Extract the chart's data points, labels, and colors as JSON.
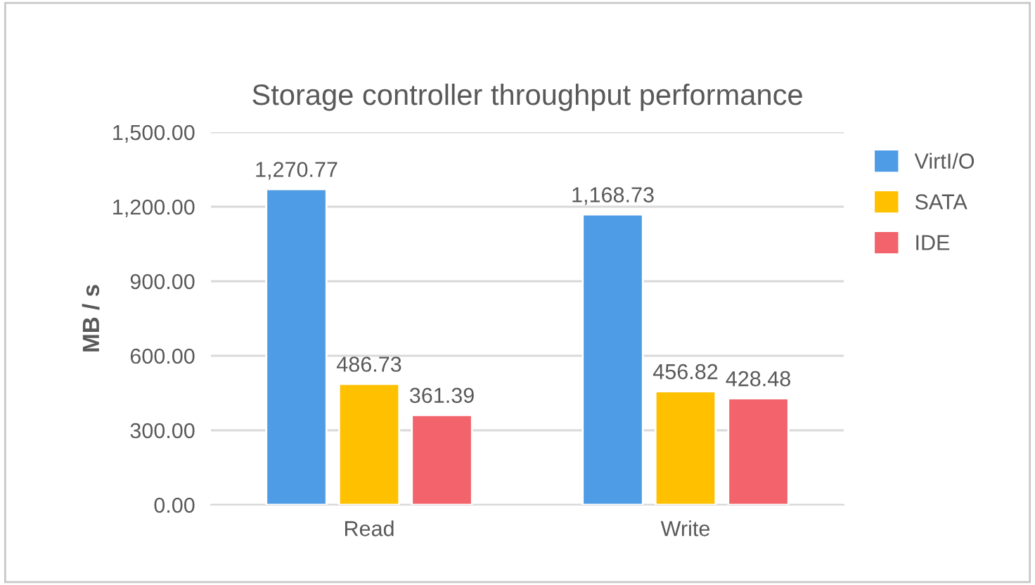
{
  "chart_data": {
    "type": "bar",
    "title": "Storage controller throughput performance",
    "ylabel": "MB / s",
    "categories": [
      "Read",
      "Write"
    ],
    "series": [
      {
        "name": "VirtI/O",
        "color": "#4e9be6",
        "values": [
          1270.77,
          1168.73
        ],
        "value_labels": [
          "1,270.77",
          "1,168.73"
        ]
      },
      {
        "name": "SATA",
        "color": "#ffc000",
        "values": [
          486.73,
          456.82
        ],
        "value_labels": [
          "486.73",
          "456.82"
        ]
      },
      {
        "name": "IDE",
        "color": "#f2636b",
        "values": [
          361.39,
          428.48
        ],
        "value_labels": [
          "361.39",
          "428.48"
        ]
      }
    ],
    "ylim": [
      0,
      1500
    ],
    "yticks": [
      {
        "value": 0,
        "label": "0.00"
      },
      {
        "value": 300,
        "label": "300.00"
      },
      {
        "value": 600,
        "label": "600.00"
      },
      {
        "value": 900,
        "label": "900.00"
      },
      {
        "value": 1200,
        "label": "1,200.00"
      },
      {
        "value": 1500,
        "label": "1,500.00"
      }
    ],
    "grid": "y",
    "legend": "right"
  }
}
